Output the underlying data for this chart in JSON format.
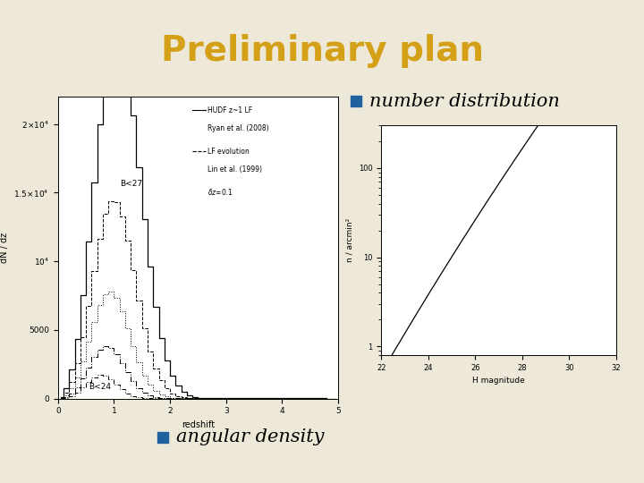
{
  "title": "Preliminary plan",
  "title_color": "#D4A017",
  "title_fontsize": 28,
  "bg_color": "#EDE8D8",
  "top_border_color": "#B8A840",
  "bullet_color": "#2060A0",
  "bullet1_text": "number distribution",
  "bullet2_text": "angular density",
  "bullet_fontsize": 15,
  "left_plot": {
    "xlabel": "redshift",
    "ylabel": "dN / dz",
    "xlim": [
      0,
      5
    ],
    "ylim": [
      0,
      22000
    ],
    "label_B27": "B<27",
    "label_B24": "B<24",
    "bg": "#FFFFFF"
  },
  "right_plot": {
    "xlabel": "H magnitude",
    "ylabel": "n / arcmin²",
    "xlim": [
      22,
      32
    ],
    "ylim_log": [
      1,
      300
    ],
    "bg": "#FFFFFF"
  }
}
